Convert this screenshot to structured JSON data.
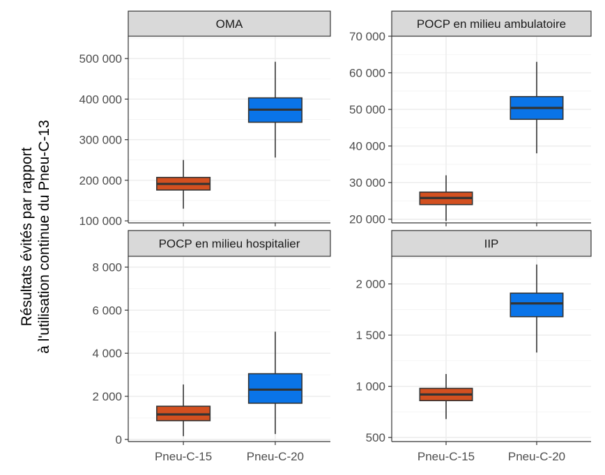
{
  "chart_data": {
    "type": "boxplot",
    "y_axis_title": [
      "Résultats évités par rapport",
      "à l'utilisation continue du Pneu-C-13"
    ],
    "categories": [
      "Pneu-C-15",
      "Pneu-C-20"
    ],
    "colors": {
      "Pneu-C-15": "#d35020",
      "Pneu-C-20": "#0a74e8"
    },
    "panels": [
      {
        "title": "OMA",
        "ylim": [
          95000,
          555000
        ],
        "ticks": [
          100000,
          200000,
          300000,
          400000,
          500000
        ],
        "tick_labels": [
          "100 000",
          "200 000",
          "300 000",
          "400 000",
          "500 000"
        ],
        "boxes": [
          {
            "category": "Pneu-C-15",
            "min": 130000,
            "q1": 176000,
            "median": 191000,
            "q3": 207000,
            "max": 250000
          },
          {
            "category": "Pneu-C-20",
            "min": 256000,
            "q1": 343000,
            "median": 374000,
            "q3": 403000,
            "max": 492000
          }
        ]
      },
      {
        "title": "POCP en milieu ambulatoire",
        "ylim": [
          19000,
          70000
        ],
        "ticks": [
          20000,
          30000,
          40000,
          50000,
          60000,
          70000
        ],
        "tick_labels": [
          "20 000",
          "30 000",
          "40 000",
          "50 000",
          "60 000",
          "70 000"
        ],
        "boxes": [
          {
            "category": "Pneu-C-15",
            "min": 19500,
            "q1": 24000,
            "median": 25800,
            "q3": 27400,
            "max": 32000
          },
          {
            "category": "Pneu-C-20",
            "min": 38000,
            "q1": 47300,
            "median": 50400,
            "q3": 53500,
            "max": 63000
          }
        ]
      },
      {
        "title": "POCP en milieu hospitalier",
        "ylim": [
          -100,
          8500
        ],
        "ticks": [
          0,
          2000,
          4000,
          6000,
          8000
        ],
        "tick_labels": [
          "0",
          "2 000",
          "4 000",
          "6 000",
          "8 000"
        ],
        "boxes": [
          {
            "category": "Pneu-C-15",
            "min": 150,
            "q1": 870,
            "median": 1160,
            "q3": 1540,
            "max": 2550
          },
          {
            "category": "Pneu-C-20",
            "min": 250,
            "q1": 1680,
            "median": 2310,
            "q3": 3050,
            "max": 5000
          }
        ]
      },
      {
        "title": "IIP",
        "ylim": [
          460,
          2270
        ],
        "ticks": [
          500,
          1000,
          1500,
          2000
        ],
        "tick_labels": [
          "500",
          "1 000",
          "1 500",
          "2 000"
        ],
        "boxes": [
          {
            "category": "Pneu-C-15",
            "min": 680,
            "q1": 860,
            "median": 920,
            "q3": 980,
            "max": 1120
          },
          {
            "category": "Pneu-C-20",
            "min": 1330,
            "q1": 1680,
            "median": 1810,
            "q3": 1910,
            "max": 2190
          }
        ]
      }
    ]
  }
}
